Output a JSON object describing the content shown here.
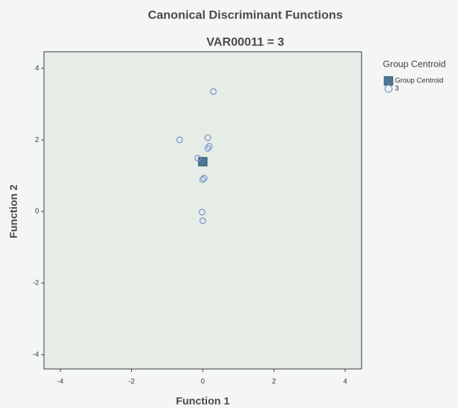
{
  "chart_data": {
    "type": "scatter",
    "title": "Canonical Discriminant Functions",
    "subtitle": "VAR00011 = 3",
    "x_label": "Function 1",
    "y_label": "Function 2",
    "legend_title": "Group Centroid",
    "xlim": [
      -4.46,
      4.46
    ],
    "ylim": [
      -4.4,
      4.46
    ],
    "xticks": [
      -4,
      -2,
      0,
      2,
      4
    ],
    "yticks": [
      -4,
      -2,
      0,
      2,
      4
    ],
    "series": [
      {
        "name": "Group Centroid",
        "color": "#4f7898",
        "marker": "square",
        "x": [
          0
        ],
        "values": [
          1.39
        ]
      },
      {
        "name": "3",
        "color": "#6f8fd0",
        "marker": "circle",
        "x": [
          0.3,
          -0.65,
          0.14,
          0.18,
          0.14,
          -0.14,
          0.04,
          0,
          -0.02,
          0
        ],
        "values": [
          3.35,
          2.0,
          2.06,
          1.82,
          1.76,
          1.49,
          0.93,
          0.89,
          -0.02,
          -0.26
        ]
      }
    ]
  }
}
